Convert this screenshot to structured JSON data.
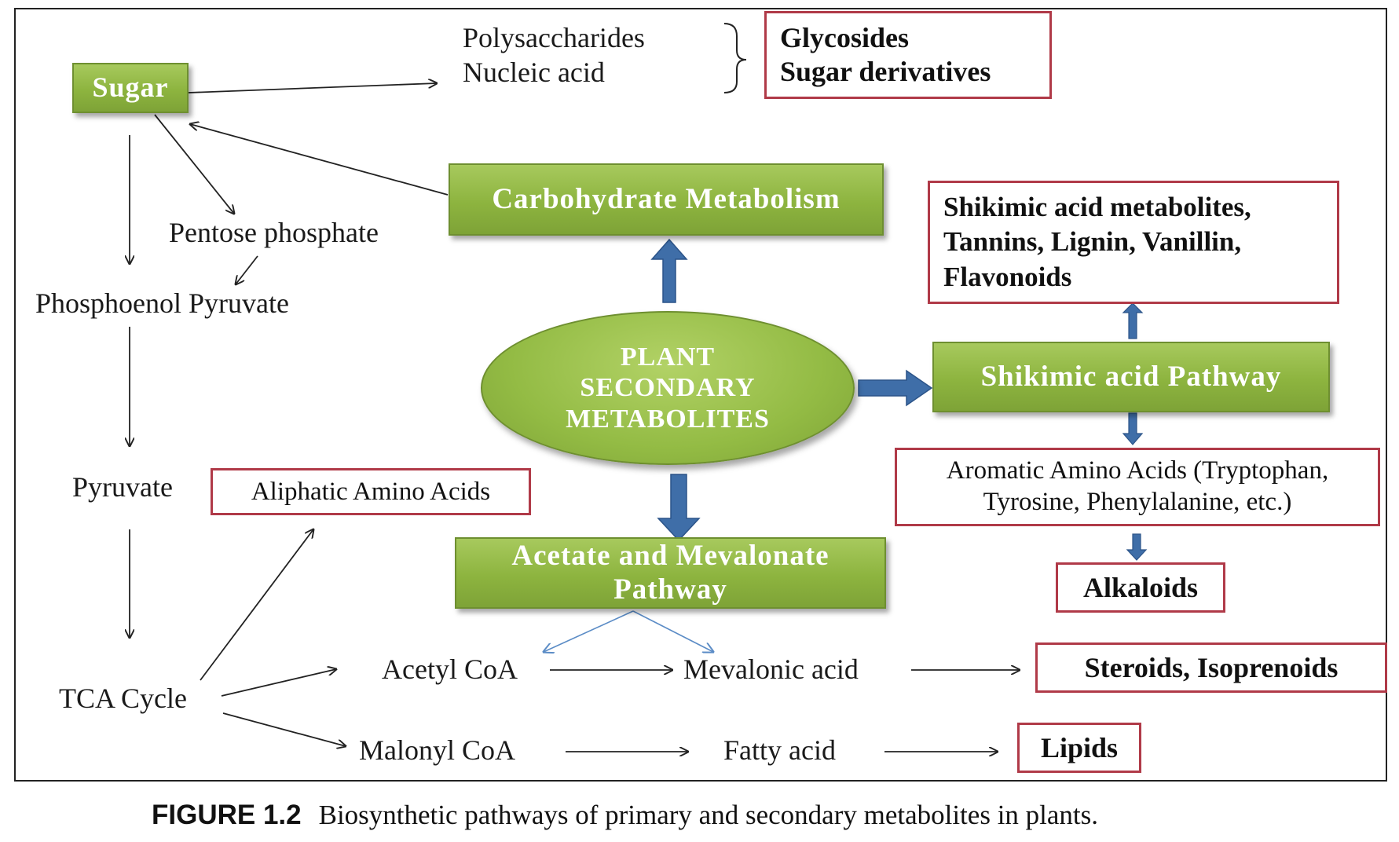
{
  "center": {
    "line1": "PLANT",
    "line2": "SECONDARY",
    "line3": "METABOLITES"
  },
  "green_boxes": {
    "sugar": "Sugar",
    "carbohydrate": "Carbohydrate Metabolism",
    "shikimic": "Shikimic acid Pathway",
    "acetate_line1": "Acetate and Mevalonate",
    "acetate_line2": "Pathway"
  },
  "red_boxes": {
    "glycosides_line1": "Glycosides",
    "glycosides_line2": "Sugar derivatives",
    "shikimic_line1": "Shikimic acid metabolites,",
    "shikimic_line2": "Tannins, Lignin, Vanillin,",
    "shikimic_line3": "Flavonoids",
    "aromatic_line1": "Aromatic Amino Acids (Tryptophan,",
    "aromatic_line2": "Tyrosine, Phenylalanine, etc.)",
    "alkaloids": "Alkaloids",
    "steroids": "Steroids, Isoprenoids",
    "lipids": "Lipids",
    "aliphatic": "Aliphatic Amino Acids"
  },
  "labels": {
    "polysaccharides": "Polysaccharides",
    "nucleic_acid": "Nucleic acid",
    "pentose_phosphate": "Pentose phosphate",
    "phosphoenol_pyruvate": "Phosphoenol Pyruvate",
    "pyruvate": "Pyruvate",
    "tca_cycle": "TCA Cycle",
    "acetyl_coa": "Acetyl CoA",
    "mevalonic_acid": "Mevalonic acid",
    "malonyl_coa": "Malonyl CoA",
    "fatty_acid": "Fatty acid"
  },
  "caption": {
    "figure_number": "FIGURE 1.2",
    "text": "Biosynthetic pathways of primary and secondary metabolites in plants."
  },
  "colors": {
    "green_box": "#8db43f",
    "red_border": "#b03a48",
    "blue_arrow": "#3f6ea8",
    "thin_blue": "#5b8cc6"
  }
}
